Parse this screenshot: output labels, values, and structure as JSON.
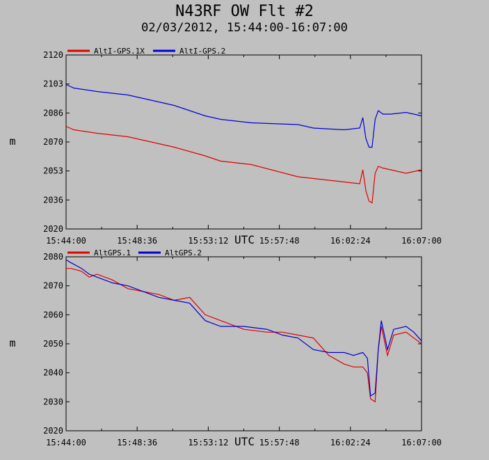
{
  "title": "N43RF OW Flt #2",
  "subtitle": "02/03/2012, 15:44:00-16:07:00",
  "colors": {
    "background": "#c0c0c0",
    "red": "#e00000",
    "blue": "#0000dd"
  },
  "chart_data": [
    {
      "type": "line",
      "ylabel": "m",
      "xlabel": "UTC",
      "ylim": [
        2020,
        2120
      ],
      "y_ticks": [
        "2120",
        "2103",
        "2086",
        "2070",
        "2053",
        "2036",
        "2020"
      ],
      "x_ticks": [
        "15:44:00",
        "15:48:36",
        "15:53:12",
        "15:57:48",
        "16:02:24",
        "16:07:00"
      ],
      "xlim_min": [
        0,
        23
      ],
      "legend_position": "top-left",
      "series": [
        {
          "name": "AltI-GPS.1X",
          "color": "#e00000",
          "x": [
            0,
            0.5,
            2,
            4,
            5,
            7,
            9,
            10,
            12,
            15,
            16,
            18,
            19,
            19.2,
            19.4,
            19.6,
            19.8,
            20.0,
            20.2,
            20.5,
            21,
            22,
            23
          ],
          "y": [
            2079,
            2077,
            2075,
            2073,
            2071,
            2067,
            2062,
            2059,
            2057,
            2050,
            2049,
            2047,
            2046,
            2054,
            2042,
            2036,
            2035,
            2052,
            2056,
            2055,
            2054,
            2052,
            2054
          ]
        },
        {
          "name": "AltI-GPS.2",
          "color": "#0000dd",
          "x": [
            0,
            0.5,
            2,
            4,
            5,
            7,
            9,
            10,
            12,
            15,
            16,
            18,
            19,
            19.2,
            19.4,
            19.6,
            19.8,
            20.0,
            20.2,
            20.5,
            21,
            22,
            23
          ],
          "y": [
            2103,
            2101,
            2099,
            2097,
            2095,
            2091,
            2085,
            2083,
            2081,
            2080,
            2078,
            2077,
            2078,
            2084,
            2072,
            2067,
            2067,
            2083,
            2088,
            2086,
            2086,
            2087,
            2085
          ]
        }
      ]
    },
    {
      "type": "line",
      "ylabel": "m",
      "xlabel": "UTC",
      "ylim": [
        2020,
        2080
      ],
      "y_ticks": [
        "2080",
        "2070",
        "2060",
        "2050",
        "2040",
        "2030",
        "2020"
      ],
      "x_ticks": [
        "15:44:00",
        "15:48:36",
        "15:53:12",
        "15:57:48",
        "16:02:24",
        "16:07:00"
      ],
      "xlim_min": [
        0,
        23
      ],
      "legend_position": "top-left",
      "series": [
        {
          "name": "AltGPS.1",
          "color": "#e00000",
          "x": [
            0,
            0.3,
            1,
            1.5,
            2,
            3,
            4,
            6,
            7,
            8,
            9,
            10,
            11.5,
            13,
            14,
            15,
            16,
            17,
            18,
            18.6,
            19.2,
            19.5,
            19.7,
            20,
            20.2,
            20.4,
            20.8,
            21.2,
            22,
            22.5,
            23
          ],
          "y": [
            2076,
            2076,
            2075,
            2073,
            2074,
            2072,
            2069,
            2067,
            2065,
            2066,
            2060,
            2058,
            2055,
            2054,
            2054,
            2053,
            2052,
            2046,
            2043,
            2042,
            2042,
            2040,
            2031,
            2030,
            2048,
            2056,
            2046,
            2053,
            2054,
            2052,
            2050
          ]
        },
        {
          "name": "AltGPS.2",
          "color": "#0000cc",
          "x": [
            0,
            0.3,
            1,
            1.5,
            2,
            3,
            4,
            6,
            7,
            8,
            9,
            10,
            11.5,
            13,
            14,
            15,
            16,
            17,
            18,
            18.6,
            19.2,
            19.5,
            19.7,
            20,
            20.2,
            20.4,
            20.8,
            21.2,
            22,
            22.5,
            23
          ],
          "y": [
            2079,
            2078,
            2076,
            2074,
            2073,
            2071,
            2070,
            2066,
            2065,
            2064,
            2058,
            2056,
            2056,
            2055,
            2053,
            2052,
            2048,
            2047,
            2047,
            2046,
            2047,
            2045,
            2032,
            2033,
            2048,
            2058,
            2048,
            2055,
            2056,
            2054,
            2051
          ]
        }
      ]
    }
  ]
}
